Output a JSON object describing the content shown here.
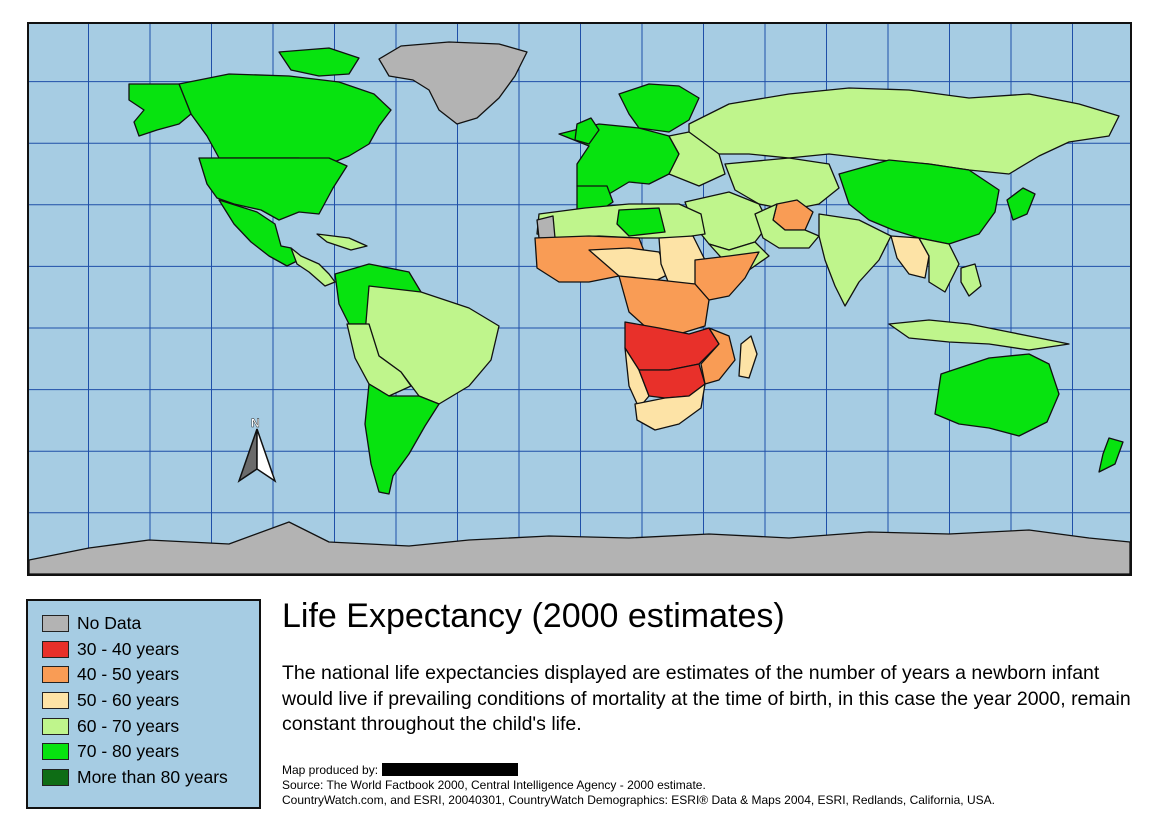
{
  "title": "Life Expectancy (2000 estimates)",
  "description": "The national life expectancies displayed are estimates of the number of years a newborn infant would live if prevailing conditions of mortality at the time of birth, in this case the year 2000, remain constant throughout the child's life.",
  "legend": {
    "items": [
      {
        "label": "No Data",
        "color": "#b3b3b3"
      },
      {
        "label": "30 - 40 years",
        "color": "#e8302a"
      },
      {
        "label": "40 - 50 years",
        "color": "#f99c55"
      },
      {
        "label": "50 - 60 years",
        "color": "#fde3a6"
      },
      {
        "label": "60 - 70 years",
        "color": "#bff58c"
      },
      {
        "label": "70 - 80 years",
        "color": "#07e30f"
      },
      {
        "label": "More than 80 years",
        "color": "#0e6d15"
      }
    ]
  },
  "north_arrow": {
    "label": "N"
  },
  "credits": {
    "produced_by_label": "Map produced by:",
    "source": "Source: The World Factbook 2000, Central Intelligence Agency - 2000 estimate.",
    "attribution": "CountryWatch.com, and ESRI, 20040301, CountryWatch Demographics: ESRI® Data & Maps 2004, ESRI, Redlands, California, USA."
  },
  "colors": {
    "ocean": "#a6cce3",
    "graticule": "#1f4fa8",
    "border": "#111111"
  }
}
